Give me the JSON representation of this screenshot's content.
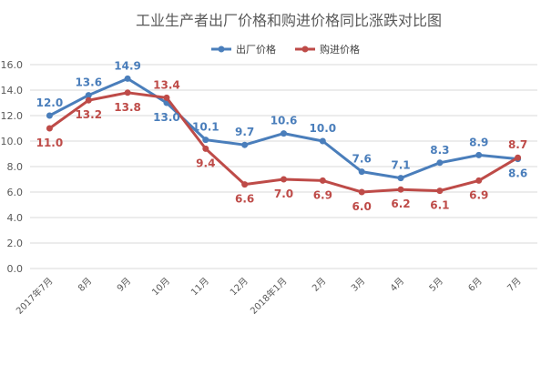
{
  "chart_data": {
    "type": "line",
    "title": "工业生产者出厂价格和购进价格同比涨跌对比图",
    "categories": [
      "2017年7月",
      "8月",
      "9月",
      "10月",
      "11月",
      "12月",
      "2018年1月",
      "2月",
      "3月",
      "4月",
      "5月",
      "6月",
      "7月"
    ],
    "series": [
      {
        "name": "出厂价格",
        "color": "#4a7ebb",
        "values": [
          12.0,
          13.6,
          14.9,
          13.0,
          10.1,
          9.7,
          10.6,
          10.0,
          7.6,
          7.1,
          8.3,
          8.9,
          8.6
        ]
      },
      {
        "name": "购进价格",
        "color": "#be4b48",
        "values": [
          11.0,
          13.2,
          13.8,
          13.4,
          9.4,
          6.6,
          7.0,
          6.9,
          6.0,
          6.2,
          6.1,
          6.9,
          8.7
        ]
      }
    ],
    "ylim": [
      0,
      16
    ],
    "yticks": [
      "0.0",
      "2.0",
      "4.0",
      "6.0",
      "8.0",
      "10.0",
      "12.0",
      "14.0",
      "16.0"
    ],
    "grid": true,
    "legend_position": "top-center"
  }
}
